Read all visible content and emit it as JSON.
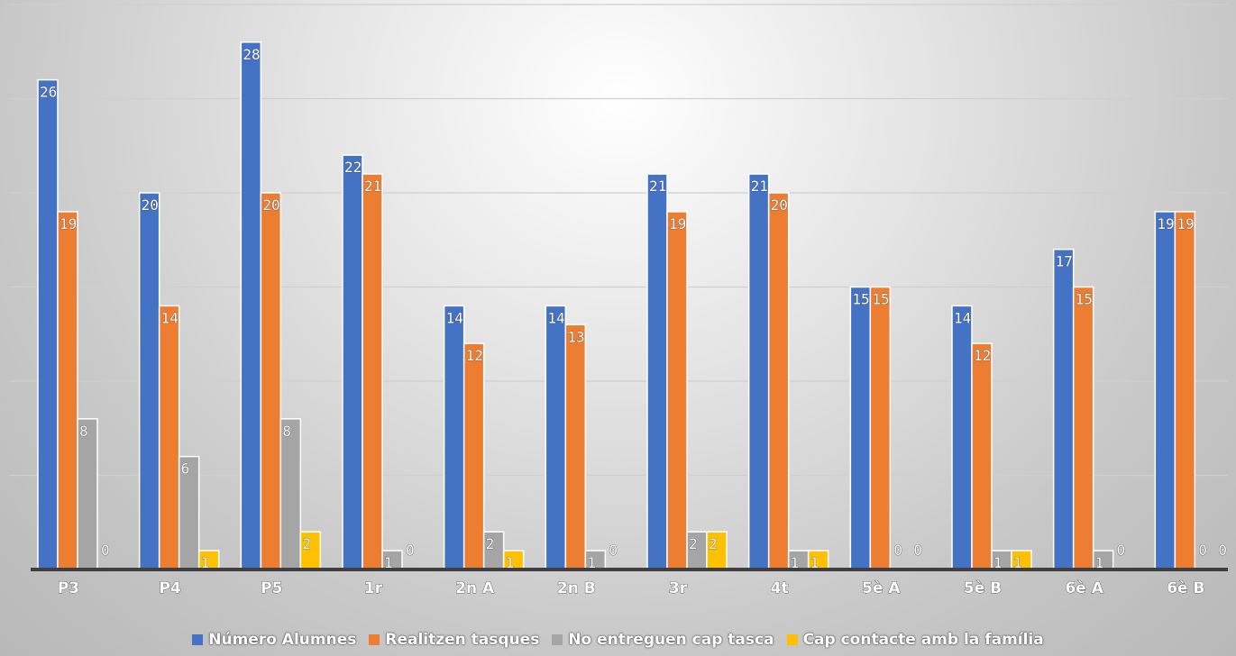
{
  "chart_data": {
    "type": "bar",
    "categories": [
      "P3",
      "P4",
      "P5",
      "1r",
      "2n A",
      "2n B",
      "3r",
      "4t",
      "5è A",
      "5è B",
      "6è A",
      "6è B"
    ],
    "series": [
      {
        "name": "Número Alumnes",
        "color": "#4472C4",
        "values": [
          26,
          20,
          28,
          22,
          14,
          14,
          21,
          21,
          15,
          14,
          17,
          19
        ]
      },
      {
        "name": "Realitzen tasques",
        "color": "#ED7D31",
        "values": [
          19,
          14,
          20,
          21,
          12,
          13,
          19,
          20,
          15,
          12,
          15,
          19
        ]
      },
      {
        "name": "No entreguen cap tasca",
        "color": "#A5A5A5",
        "values": [
          8,
          6,
          8,
          1,
          2,
          1,
          2,
          1,
          0,
          1,
          1,
          0
        ]
      },
      {
        "name": "Cap contacte amb la família",
        "color": "#FFC000",
        "values": [
          0,
          1,
          2,
          0,
          1,
          0,
          2,
          1,
          0,
          1,
          0,
          0
        ]
      }
    ],
    "ylim": [
      0,
      30
    ],
    "grid": true,
    "legend_position": "bottom",
    "data_labels": true
  }
}
